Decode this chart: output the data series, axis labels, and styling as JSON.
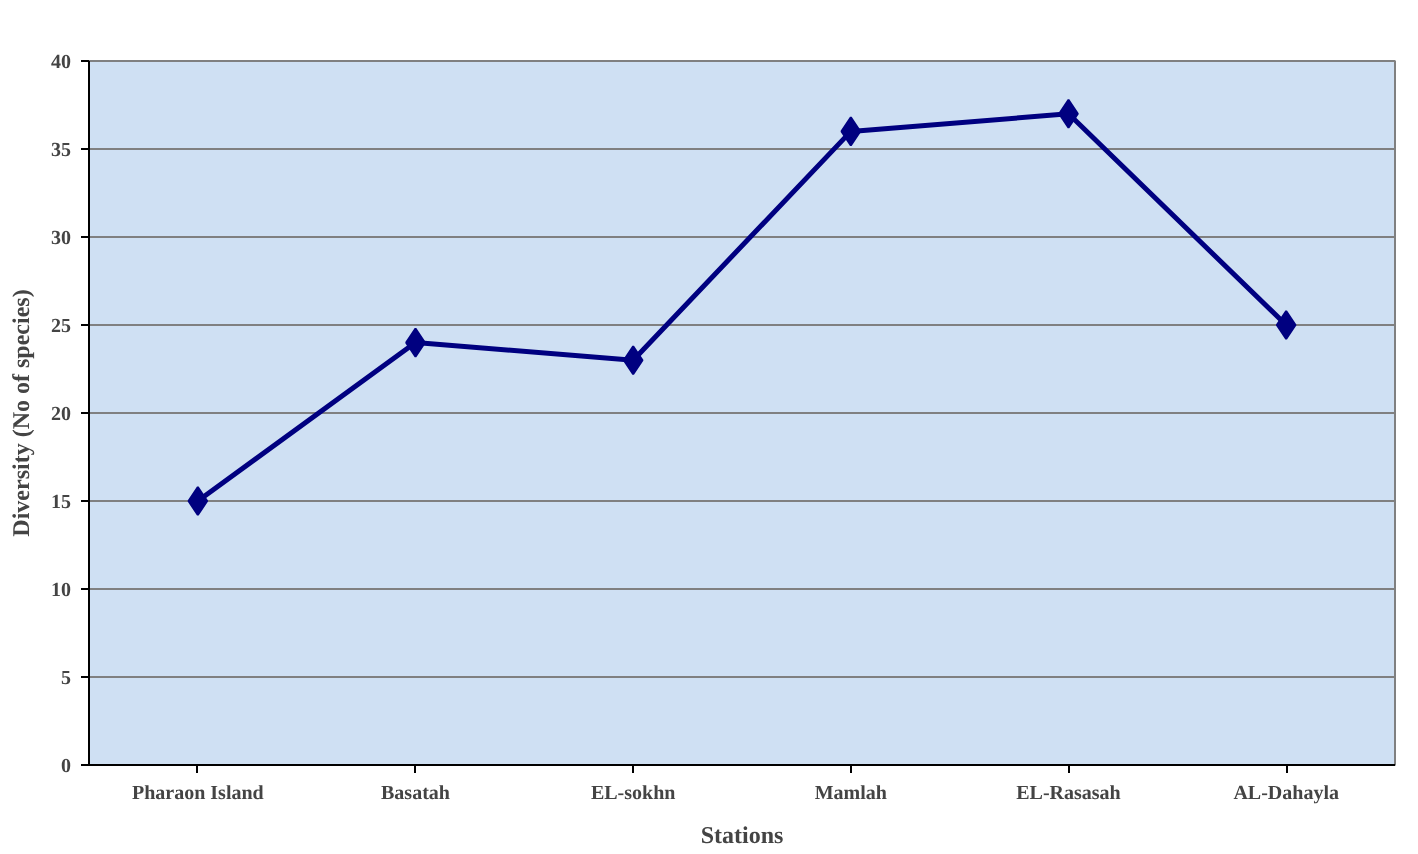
{
  "chart_data": {
    "type": "line",
    "xlabel": "Stations",
    "ylabel": "Diversity (No of species)",
    "categories": [
      "Pharaon Island",
      "Basatah",
      "EL-sokhn",
      "Mamlah",
      "EL-Rasasah",
      "AL-Dahayla"
    ],
    "series": [
      {
        "color": "#000080",
        "values": [
          15,
          24,
          23,
          36,
          37,
          25
        ]
      }
    ],
    "ylim": [
      0,
      40
    ],
    "yticks": [
      0,
      5,
      10,
      15,
      20,
      25,
      30,
      35,
      40
    ],
    "grid": "y",
    "marker": "diamond",
    "line_style": "solid"
  }
}
